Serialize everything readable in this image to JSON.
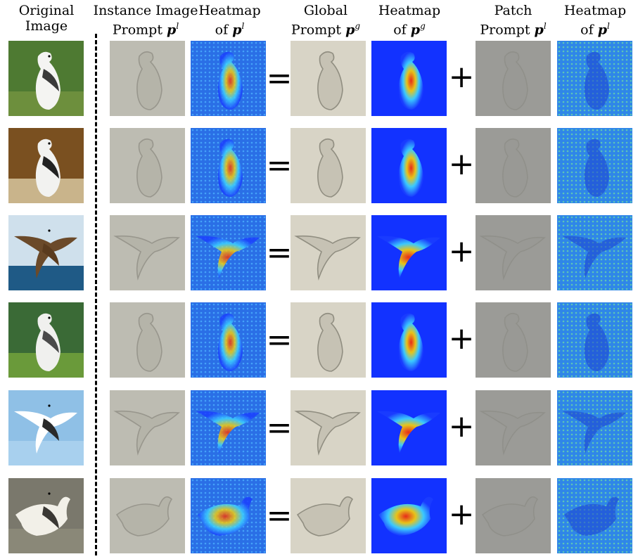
{
  "headers": [
    {
      "line1": "Original",
      "line2": "Image",
      "sym": "",
      "sup": ""
    },
    {
      "line1": "Instance Image",
      "line2": "Prompt",
      "sym": "p",
      "sup": "l"
    },
    {
      "line1": "Heatmap",
      "line2": "of",
      "sym": "p",
      "sup": "l"
    },
    {
      "line1": "Global",
      "line2": "Prompt",
      "sym": "p",
      "sup": "g"
    },
    {
      "line1": "Heatmap",
      "line2": "of",
      "sym": "p",
      "sup": "g"
    },
    {
      "line1": "Patch",
      "line2": "Prompt",
      "sym": "p",
      "sup": "l"
    },
    {
      "line1": "Heatmap",
      "line2": "of",
      "sym": "p",
      "sup": "l"
    }
  ],
  "operators": {
    "equals": "=",
    "plus": "+"
  },
  "rows": [
    {
      "bg": "#4e7a32",
      "ground": "#6d8f3d",
      "bird": "#f4f4f2",
      "wing": "#3a3a3a",
      "pose": "standing"
    },
    {
      "bg": "#7a5020",
      "ground": "#c9b48b",
      "bird": "#f2f2f0",
      "wing": "#222222",
      "pose": "standing"
    },
    {
      "bg": "#cfe0ec",
      "ground": "#1f5a86",
      "bird": "#6b4a2a",
      "wing": "#5a3b1e",
      "pose": "flying"
    },
    {
      "bg": "#3a6a36",
      "ground": "#6a9a3a",
      "bird": "#f0f0ee",
      "wing": "#4a4a4a",
      "pose": "standing"
    },
    {
      "bg": "#8fc0e6",
      "ground": "#a8d0ee",
      "bird": "#ffffff",
      "wing": "#2a2a2a",
      "pose": "flying"
    },
    {
      "bg": "#7a786c",
      "ground": "#8a8878",
      "bird": "#f2f0e8",
      "wing": "#3a3834",
      "pose": "swimming"
    }
  ]
}
